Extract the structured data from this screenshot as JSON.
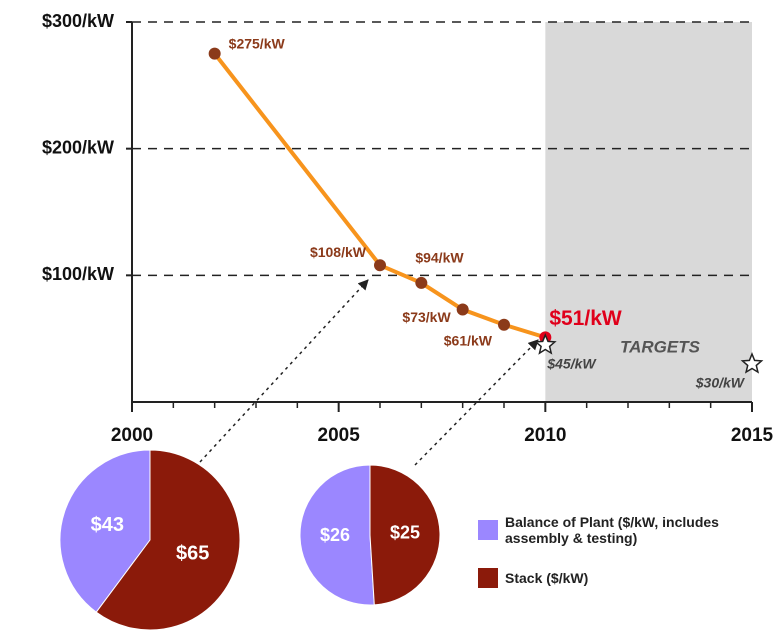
{
  "chart_data": [
    {
      "type": "line",
      "xlim": [
        2000,
        2015
      ],
      "ylim": [
        0,
        300
      ],
      "xticks": [
        2000,
        2005,
        2010,
        2015
      ],
      "xminorticks": [
        2001,
        2002,
        2003,
        2004,
        2006,
        2007,
        2008,
        2009,
        2011,
        2012,
        2013,
        2014
      ],
      "yticks": [
        {
          "value": 100,
          "label": "$100/kW"
        },
        {
          "value": 200,
          "label": "$200/kW"
        },
        {
          "value": 300,
          "label": "$300/kW"
        }
      ],
      "grid": true,
      "shade_x": [
        2010,
        2015
      ],
      "shade_color": "#d9d9d9",
      "series": [
        {
          "color": "#f7941d",
          "marker_color": "#8b3a1a",
          "highlight_color": "#e0001b",
          "x": [
            2002,
            2006,
            2007,
            2008,
            2009,
            2010
          ],
          "values": [
            275,
            108,
            94,
            73,
            61,
            51
          ],
          "value_labels": [
            "$275/kW",
            "$108/kW",
            "$94/kW",
            "$73/kW",
            "$61/kW",
            "$51/kW"
          ]
        },
        {
          "name": "TARGETS",
          "marker": "star",
          "x": [
            2010,
            2015
          ],
          "values": [
            45,
            30
          ],
          "value_labels": [
            "$45/kW",
            "$30/kW"
          ]
        }
      ]
    },
    {
      "type": "pie",
      "categories": [
        "Balance of Plant ($/kW, includes assembly & testing)",
        "Stack ($/kW)"
      ],
      "colors": [
        "#9b87ff",
        "#8b1a0a"
      ],
      "values": [
        43,
        65
      ],
      "value_labels": [
        "$43",
        "$65"
      ]
    },
    {
      "type": "pie",
      "colors": [
        "#9b87ff",
        "#8b1a0a"
      ],
      "values": [
        26,
        25
      ],
      "value_labels": [
        "$26",
        "$25"
      ]
    }
  ]
}
